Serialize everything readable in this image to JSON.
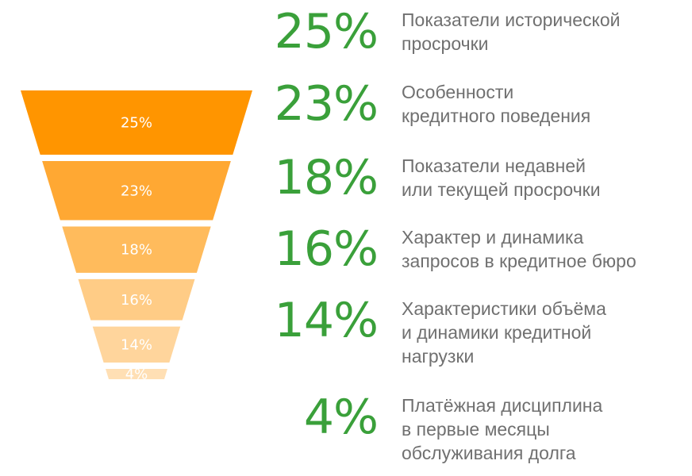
{
  "chart_data": {
    "type": "funnel",
    "colors": [
      "#ff9500",
      "#ffa833",
      "#ffbb5c",
      "#ffcc86",
      "#ffd59c",
      "#ffdfb4"
    ],
    "accent": "#3aa03a",
    "segments": [
      {
        "value": 25,
        "label": "25%",
        "pct_text": "25%",
        "desc_lines": [
          "Показатели исторической",
          "просрочки"
        ]
      },
      {
        "value": 23,
        "label": "23%",
        "pct_text": "23%",
        "desc_lines": [
          "Особенности",
          "кредитного поведения"
        ]
      },
      {
        "value": 18,
        "label": "18%",
        "pct_text": "18%",
        "desc_lines": [
          "Показатели недавней",
          "или текущей просрочки"
        ]
      },
      {
        "value": 16,
        "label": "16%",
        "pct_text": "16%",
        "desc_lines": [
          "Характер и динамика",
          "запросов в кредитное бюро"
        ]
      },
      {
        "value": 14,
        "label": "14%",
        "pct_text": "14%",
        "desc_lines": [
          "Характеристики объёма",
          "и динамики кредитной",
          "нагрузки"
        ]
      },
      {
        "value": 4,
        "label": "4%",
        "pct_text": "4%",
        "desc_lines": [
          "Платёжная дисциплина",
          "в первые месяцы",
          "обслуживания долга"
        ]
      }
    ]
  }
}
